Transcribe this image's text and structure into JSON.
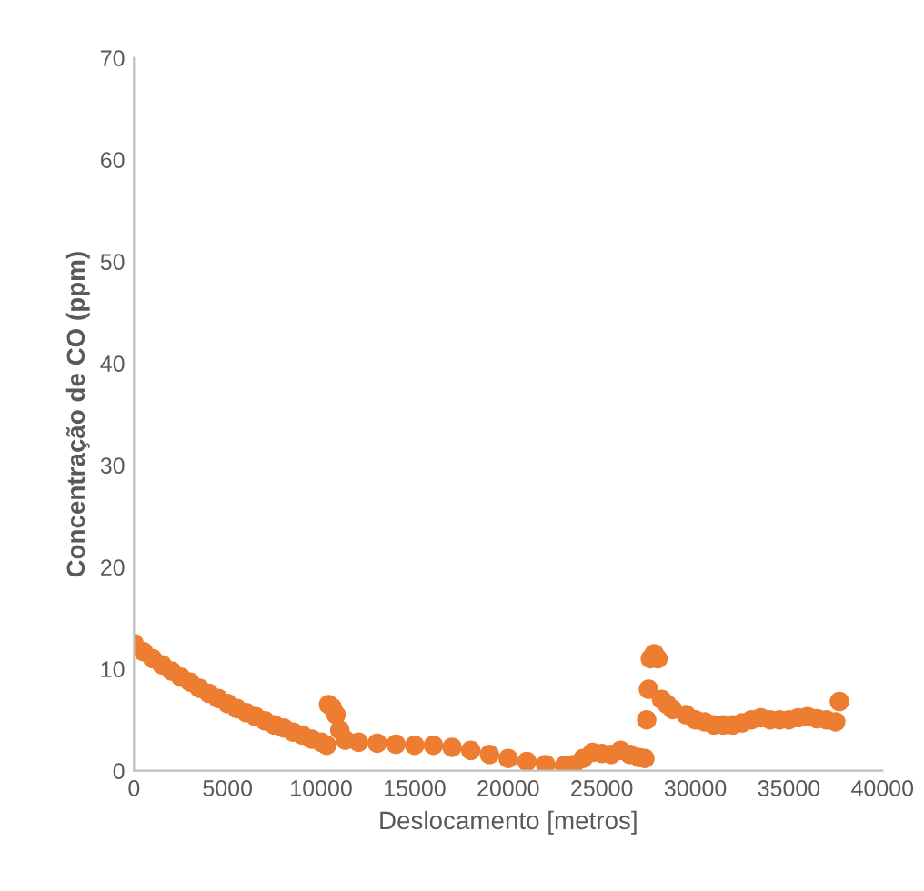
{
  "chart_data": {
    "type": "scatter",
    "xlabel": "Deslocamento [metros]",
    "ylabel": "Concentração de CO (ppm)",
    "xlim": [
      0,
      40000
    ],
    "xticks": [
      0,
      5000,
      10000,
      15000,
      20000,
      25000,
      30000,
      35000,
      40000
    ],
    "ylim": [
      0,
      70
    ],
    "yticks": [
      0,
      10,
      20,
      30,
      40,
      50,
      60,
      70
    ],
    "grid": false,
    "marker": "circle",
    "series": [
      {
        "color": "#ed7d31",
        "x": [
          0,
          500,
          1000,
          1500,
          2000,
          2500,
          3000,
          3500,
          4000,
          4500,
          5000,
          5500,
          6000,
          6500,
          7000,
          7500,
          8000,
          8500,
          9000,
          9500,
          10000,
          10300,
          10400,
          10600,
          10800,
          11000,
          11300,
          12000,
          13000,
          14000,
          15000,
          16000,
          17000,
          18000,
          19000,
          20000,
          21000,
          22000,
          23000,
          23500,
          24000,
          24500,
          25000,
          25500,
          26000,
          26500,
          27000,
          27300,
          27400,
          27500,
          27600,
          27800,
          28000,
          28200,
          28500,
          28800,
          29500,
          30000,
          30500,
          31000,
          31500,
          32000,
          32500,
          33000,
          33500,
          34000,
          34500,
          35000,
          35500,
          36000,
          36500,
          37000,
          37500,
          37700
        ],
        "values": [
          12.5,
          11.7,
          11,
          10.4,
          9.8,
          9.2,
          8.7,
          8.1,
          7.6,
          7.1,
          6.6,
          6.1,
          5.7,
          5.3,
          4.9,
          4.5,
          4.2,
          3.8,
          3.5,
          3.1,
          2.8,
          2.5,
          6.5,
          6.2,
          5.5,
          4,
          3,
          2.8,
          2.7,
          2.6,
          2.5,
          2.5,
          2.3,
          2,
          1.6,
          1.2,
          0.9,
          0.6,
          0.5,
          0.6,
          1.2,
          1.8,
          1.7,
          1.6,
          2,
          1.6,
          1.3,
          1.2,
          5,
          8,
          11,
          11.5,
          11,
          7,
          6.5,
          6,
          5.5,
          5,
          4.8,
          4.5,
          4.5,
          4.5,
          4.7,
          5,
          5.2,
          5,
          5,
          5,
          5.2,
          5.3,
          5.1,
          5,
          4.8,
          6.8
        ]
      }
    ]
  }
}
